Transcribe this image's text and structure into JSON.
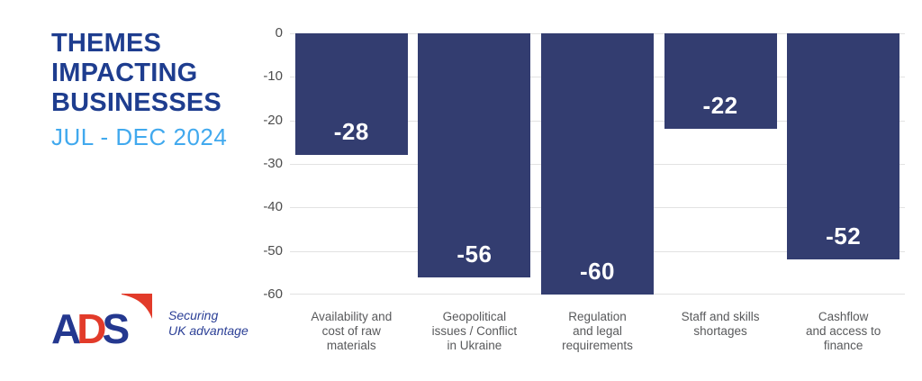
{
  "chart_data": {
    "type": "bar",
    "title": "THEMES IMPACTING BUSINESSES",
    "subtitle": "JUL - DEC 2024",
    "categories": [
      "Availability and cost of raw materials",
      "Geopolitical issues / Conflict in Ukraine",
      "Regulation and legal requirements",
      "Staff and skills shortages",
      "Cashflow and access to finance"
    ],
    "category_lines": [
      [
        "Availability and",
        "cost of raw",
        "materials"
      ],
      [
        "Geopolitical",
        "issues / Conflict",
        "in Ukraine"
      ],
      [
        "Regulation",
        "and legal",
        "requirements"
      ],
      [
        "Staff and skills",
        "shortages"
      ],
      [
        "Cashflow",
        "and access to",
        "finance"
      ]
    ],
    "values": [
      -28,
      -56,
      -60,
      -22,
      -52
    ],
    "value_labels": [
      "-28",
      "-56",
      "-60",
      "-22",
      "-52"
    ],
    "ylim": [
      -60,
      0
    ],
    "yticks": [
      0,
      -10,
      -20,
      -30,
      -40,
      -50,
      -60
    ],
    "grid": true,
    "legend": "none",
    "xlabel": "",
    "ylabel": "",
    "colors": {
      "bar": "#333d70",
      "bar_label": "#ffffff",
      "gridline": "#e2e2e2",
      "tick_text": "#4d4d4d",
      "category_text": "#58595b",
      "title": "#1e3d8f",
      "subtitle": "#41a9ee"
    }
  },
  "logo": {
    "letters": [
      "A",
      "D",
      "S"
    ],
    "tagline_line1": "Securing",
    "tagline_line2": "UK advantage",
    "colors": {
      "blue": "#24388f",
      "red": "#e23b2a"
    }
  }
}
